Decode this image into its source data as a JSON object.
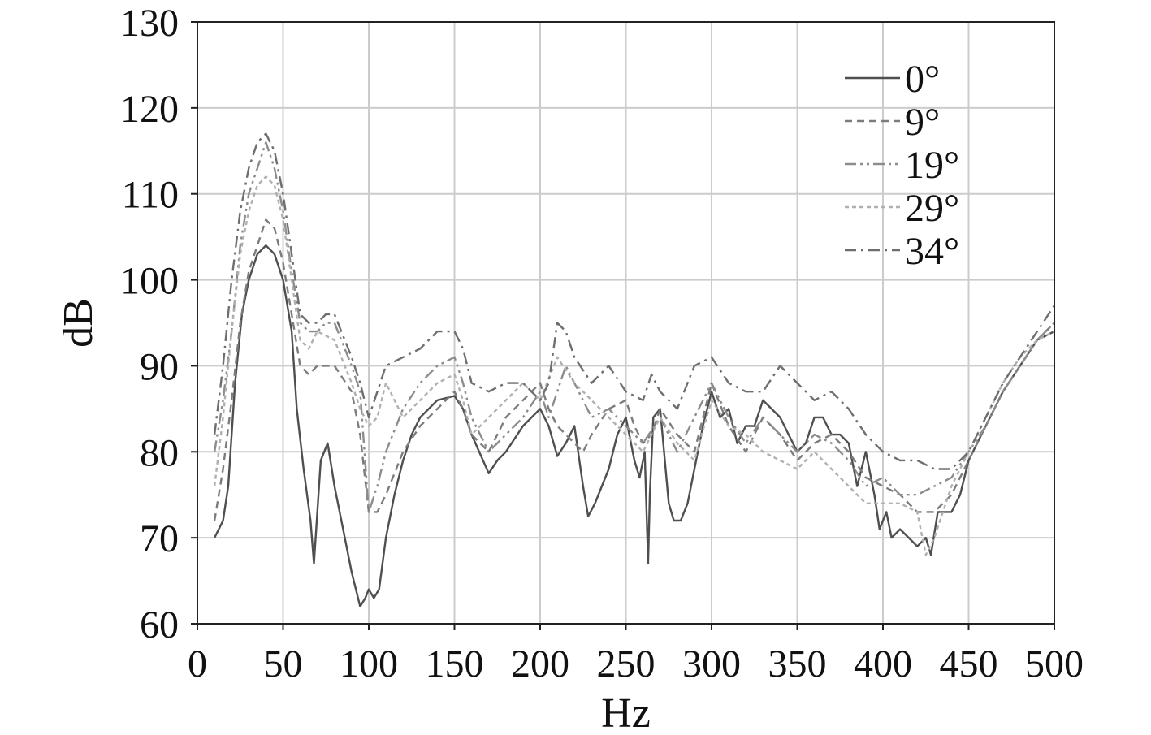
{
  "chart_data": {
    "type": "line",
    "title": "",
    "xlabel": "Hz",
    "ylabel": "dB",
    "xlim": [
      0,
      500
    ],
    "ylim": [
      60,
      130
    ],
    "xticks": [
      0,
      50,
      100,
      150,
      200,
      250,
      300,
      350,
      400,
      450,
      500
    ],
    "yticks": [
      60,
      70,
      80,
      90,
      100,
      110,
      120,
      130
    ],
    "grid": true,
    "legend_position": "top-right",
    "colors": {
      "grid": "#cccccc",
      "axis": "#222222",
      "series_0": "#4f4f4f",
      "series_9": "#7c7c7c",
      "series_19": "#8c8c8c",
      "series_29": "#b0b0b0",
      "series_34": "#6e6e6e"
    },
    "series": [
      {
        "name": "0°",
        "style": "solid",
        "x": [
          10,
          15,
          18,
          22,
          26,
          30,
          35,
          40,
          45,
          50,
          55,
          58,
          62,
          66,
          68,
          72,
          76,
          80,
          85,
          90,
          95,
          98,
          100,
          103,
          106,
          110,
          115,
          120,
          125,
          130,
          140,
          150,
          155,
          160,
          170,
          175,
          180,
          190,
          200,
          205,
          210,
          215,
          220,
          225,
          228,
          232,
          240,
          245,
          250,
          255,
          258,
          261,
          263,
          264,
          266,
          270,
          275,
          278,
          282,
          286,
          290,
          295,
          300,
          305,
          310,
          315,
          320,
          325,
          330,
          335,
          340,
          345,
          350,
          355,
          360,
          365,
          370,
          375,
          380,
          385,
          390,
          395,
          398,
          402,
          405,
          410,
          415,
          420,
          425,
          428,
          432,
          440,
          445,
          450,
          460,
          470,
          480,
          490,
          500
        ],
        "y": [
          70,
          72,
          76,
          88,
          96,
          100,
          103,
          104,
          103,
          100,
          94,
          85,
          78,
          72,
          67,
          79,
          81,
          76,
          71,
          66,
          62,
          63,
          64,
          63,
          64,
          70,
          75,
          79,
          82,
          84,
          86,
          86.5,
          85,
          82,
          77.5,
          79,
          80,
          83,
          85,
          83,
          79.5,
          81,
          83,
          76,
          72.5,
          74,
          78,
          82,
          84,
          79,
          77,
          80,
          67,
          75,
          84,
          85,
          74,
          72,
          72,
          74,
          78,
          83,
          87,
          84,
          85,
          81,
          83,
          83,
          86,
          85,
          84,
          82,
          80,
          81,
          84,
          84,
          82,
          82,
          81,
          76,
          80,
          75,
          71,
          73,
          70,
          71,
          70,
          69,
          70,
          68,
          73,
          73,
          75,
          79,
          83,
          87,
          90,
          93,
          94
        ]
      },
      {
        "name": "9°",
        "style": "dash",
        "x": [
          10,
          15,
          20,
          25,
          30,
          35,
          40,
          45,
          50,
          55,
          60,
          65,
          70,
          80,
          90,
          95,
          100,
          105,
          110,
          120,
          130,
          140,
          150,
          155,
          160,
          170,
          180,
          190,
          200,
          205,
          210,
          220,
          225,
          230,
          240,
          250,
          255,
          260,
          265,
          270,
          280,
          290,
          300,
          310,
          320,
          330,
          340,
          350,
          360,
          370,
          380,
          390,
          400,
          410,
          420,
          430,
          440,
          450,
          460,
          470,
          480,
          490,
          500
        ],
        "y": [
          72,
          78,
          86,
          95,
          101,
          104,
          107,
          106,
          102,
          96,
          90,
          89,
          90,
          90,
          87,
          82,
          73,
          73,
          75,
          80,
          83,
          85,
          87,
          85,
          82,
          80,
          84,
          86,
          88,
          85,
          83,
          81,
          80,
          82,
          85,
          86,
          83,
          81,
          82,
          85,
          82,
          80,
          88,
          83,
          80,
          84,
          82,
          79,
          81,
          82,
          80,
          77,
          76,
          75,
          73,
          73,
          75,
          79,
          83,
          87,
          90,
          93,
          95
        ]
      },
      {
        "name": "19°",
        "style": "dashdotdot",
        "x": [
          10,
          15,
          20,
          25,
          30,
          35,
          40,
          45,
          50,
          55,
          60,
          65,
          70,
          75,
          80,
          90,
          95,
          100,
          105,
          110,
          120,
          130,
          140,
          150,
          155,
          160,
          170,
          180,
          190,
          200,
          205,
          210,
          215,
          220,
          230,
          240,
          250,
          260,
          270,
          280,
          290,
          300,
          310,
          320,
          330,
          340,
          350,
          360,
          370,
          380,
          390,
          400,
          410,
          420,
          430,
          440,
          450,
          460,
          470,
          480,
          490,
          500
        ],
        "y": [
          80,
          86,
          94,
          104,
          110,
          113,
          116,
          113,
          108,
          101,
          95,
          94,
          94,
          95,
          95,
          90,
          87,
          73,
          76,
          80,
          85,
          88,
          90,
          91,
          88,
          84,
          80,
          82,
          84,
          87,
          84,
          87,
          90,
          88,
          84,
          85,
          83,
          81,
          84,
          80,
          84,
          88,
          84,
          81,
          84,
          82,
          80,
          82,
          81,
          79,
          76,
          77,
          75,
          75,
          76,
          77,
          80,
          83,
          87,
          90,
          93,
          95
        ]
      },
      {
        "name": "29°",
        "style": "dot",
        "x": [
          10,
          15,
          20,
          25,
          30,
          35,
          40,
          45,
          50,
          55,
          60,
          65,
          70,
          80,
          90,
          95,
          100,
          105,
          110,
          120,
          130,
          140,
          150,
          155,
          160,
          170,
          180,
          190,
          200,
          210,
          220,
          230,
          240,
          250,
          260,
          270,
          280,
          290,
          300,
          310,
          320,
          330,
          340,
          350,
          360,
          370,
          380,
          390,
          400,
          410,
          420,
          425,
          430,
          440,
          450,
          460,
          470,
          480,
          490,
          500
        ],
        "y": [
          76,
          84,
          94,
          103,
          108,
          111,
          112,
          111,
          107,
          100,
          93,
          92,
          94,
          93,
          88,
          85,
          83,
          84,
          88,
          84,
          86,
          88,
          89,
          86,
          82,
          84,
          86,
          88,
          86,
          91,
          88,
          86,
          84,
          82,
          80,
          84,
          81,
          79,
          86,
          83,
          82,
          80,
          79,
          78,
          80,
          78,
          76,
          74,
          74,
          74,
          73,
          68,
          70,
          76,
          80,
          84,
          88,
          91,
          93,
          94
        ]
      },
      {
        "name": "34°",
        "style": "dashdot",
        "x": [
          10,
          15,
          20,
          25,
          30,
          35,
          40,
          45,
          50,
          55,
          60,
          65,
          70,
          75,
          80,
          90,
          95,
          100,
          105,
          110,
          120,
          130,
          140,
          150,
          155,
          160,
          170,
          180,
          190,
          200,
          205,
          210,
          215,
          220,
          230,
          240,
          250,
          260,
          265,
          270,
          280,
          290,
          300,
          310,
          320,
          330,
          340,
          350,
          360,
          370,
          380,
          390,
          400,
          410,
          420,
          430,
          440,
          450,
          460,
          470,
          480,
          490,
          500
        ],
        "y": [
          82,
          90,
          100,
          108,
          113,
          116,
          117,
          115,
          110,
          103,
          96,
          95,
          95,
          96,
          96,
          91,
          88,
          84,
          87,
          90,
          91,
          92,
          94,
          94,
          92,
          88,
          87,
          88,
          88,
          86,
          88,
          95,
          94,
          91,
          88,
          90,
          87,
          86,
          89,
          87,
          85,
          90,
          91,
          88,
          87,
          87,
          90,
          88,
          86,
          87,
          85,
          82,
          80,
          79,
          79,
          78,
          78,
          80,
          84,
          88,
          91,
          94,
          97
        ]
      }
    ]
  }
}
